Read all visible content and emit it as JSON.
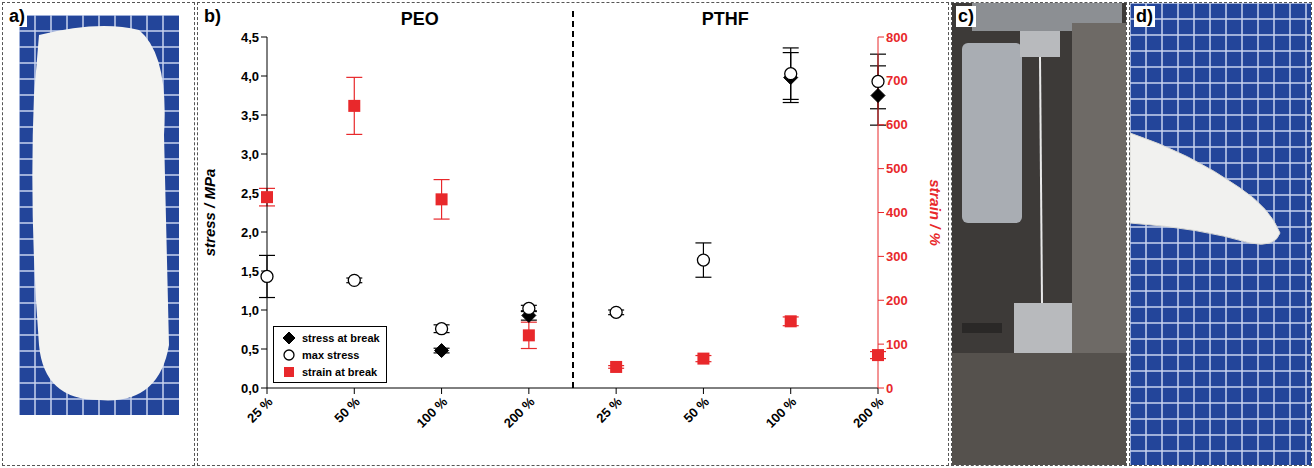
{
  "panel_labels": [
    "a)",
    "b)",
    "c)",
    "d)"
  ],
  "chart_data": {
    "type": "scatter",
    "groups": [
      "PEO",
      "PTHF"
    ],
    "categories": [
      "25 %",
      "50 %",
      "100 %",
      "200 %",
      "25 %",
      "50 %",
      "100 %",
      "200 %"
    ],
    "y_label": "stress / MPa",
    "y2_label": "strain / %",
    "ylim": [
      0,
      4.5
    ],
    "yticks": [
      {
        "value": 0,
        "label": "0,0"
      },
      {
        "value": 0.5,
        "label": "0,5"
      },
      {
        "value": 1,
        "label": "1,0"
      },
      {
        "value": 1.5,
        "label": "1,5"
      },
      {
        "value": 2,
        "label": "2,0"
      },
      {
        "value": 2.5,
        "label": "2,5"
      },
      {
        "value": 3,
        "label": "3,0"
      },
      {
        "value": 3.5,
        "label": "3,5"
      },
      {
        "value": 4,
        "label": "4,0"
      },
      {
        "value": 4.5,
        "label": "4,5"
      }
    ],
    "y2lim": [
      0,
      800
    ],
    "y2ticks": [
      0,
      100,
      200,
      300,
      400,
      500,
      600,
      700,
      800
    ],
    "legend": "lower left",
    "series": [
      {
        "name": "stress at break",
        "color": "#000000",
        "marker": "diamond",
        "values": [
          null,
          null,
          0.48,
          0.93,
          null,
          null,
          3.98,
          3.75
        ],
        "errors": [
          null,
          null,
          0.03,
          0.06,
          null,
          null,
          0.32,
          0.38
        ]
      },
      {
        "name": "max stress",
        "color": "#000000",
        "marker": "open circle",
        "values": [
          1.43,
          1.38,
          0.76,
          1.02,
          0.97,
          1.64,
          4.03,
          3.93
        ],
        "errors": [
          0.27,
          0.03,
          0.05,
          0.04,
          0.03,
          0.22,
          0.33,
          0.35
        ]
      },
      {
        "name": "strain at break",
        "color": "#e8282b",
        "marker": "square",
        "axis": "y2",
        "values": [
          435,
          643,
          430,
          120,
          48,
          67,
          152,
          75
        ],
        "errors": [
          20,
          65,
          45,
          30,
          3,
          7,
          10,
          8
        ]
      }
    ]
  }
}
